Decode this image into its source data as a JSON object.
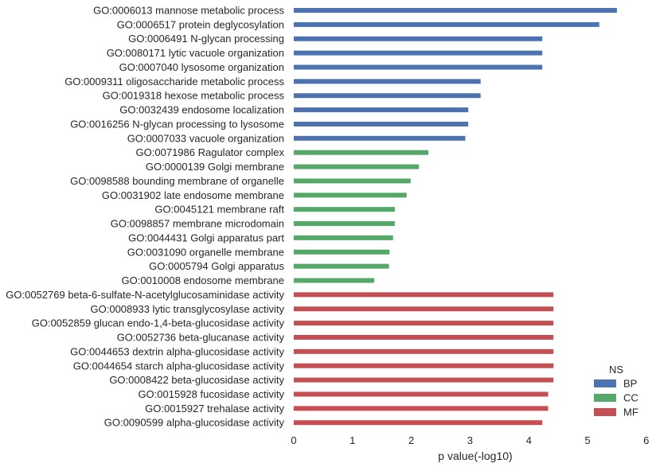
{
  "chart_data": {
    "type": "bar",
    "orientation": "horizontal",
    "xlabel": "p value(-log10)",
    "xlim": [
      0,
      6
    ],
    "xticks": [
      0,
      1,
      2,
      3,
      4,
      5,
      6
    ],
    "grid": false,
    "legend": {
      "title": "NS",
      "placement": "bottom-right",
      "entries": [
        {
          "label": "BP",
          "color": "#4c72b0"
        },
        {
          "label": "CC",
          "color": "#55a868"
        },
        {
          "label": "MF",
          "color": "#c44e52"
        }
      ]
    },
    "categories": [
      "GO:0006013 mannose metabolic process",
      "GO:0006517 protein deglycosylation",
      "GO:0006491 N-glycan processing",
      "GO:0080171 lytic vacuole organization",
      "GO:0007040 lysosome organization",
      "GO:0009311 oligosaccharide metabolic process",
      "GO:0019318 hexose metabolic process",
      "GO:0032439 endosome localization",
      "GO:0016256 N-glycan processing to lysosome",
      "GO:0007033 vacuole organization",
      "GO:0071986 Ragulator complex",
      "GO:0000139 Golgi membrane",
      "GO:0098588 bounding membrane of organelle",
      "GO:0031902 late endosome membrane",
      "GO:0045121 membrane raft",
      "GO:0098857 membrane microdomain",
      "GO:0044431 Golgi apparatus part",
      "GO:0031090 organelle membrane",
      "GO:0005794 Golgi apparatus",
      "GO:0010008 endosome membrane",
      "GO:0052769 beta-6-sulfate-N-acetylglucosaminidase activity",
      "GO:0008933 lytic transglycosylase activity",
      "GO:0052859 glucan endo-1,4-beta-glucosidase activity",
      "GO:0052736 beta-glucanase activity",
      "GO:0044653 dextrin alpha-glucosidase activity",
      "GO:0044654 starch alpha-glucosidase activity",
      "GO:0008422 beta-glucosidase activity",
      "GO:0015928 fucosidase activity",
      "GO:0015927 trehalase activity",
      "GO:0090599 alpha-glucosidase activity"
    ],
    "values": [
      5.5,
      5.2,
      4.23,
      4.23,
      4.23,
      3.18,
      3.18,
      2.97,
      2.97,
      2.92,
      2.29,
      2.13,
      1.99,
      1.92,
      1.72,
      1.72,
      1.69,
      1.63,
      1.62,
      1.37,
      4.42,
      4.42,
      4.42,
      4.42,
      4.42,
      4.42,
      4.42,
      4.33,
      4.33,
      4.23
    ],
    "groups": [
      "BP",
      "BP",
      "BP",
      "BP",
      "BP",
      "BP",
      "BP",
      "BP",
      "BP",
      "BP",
      "CC",
      "CC",
      "CC",
      "CC",
      "CC",
      "CC",
      "CC",
      "CC",
      "CC",
      "CC",
      "MF",
      "MF",
      "MF",
      "MF",
      "MF",
      "MF",
      "MF",
      "MF",
      "MF",
      "MF"
    ]
  }
}
